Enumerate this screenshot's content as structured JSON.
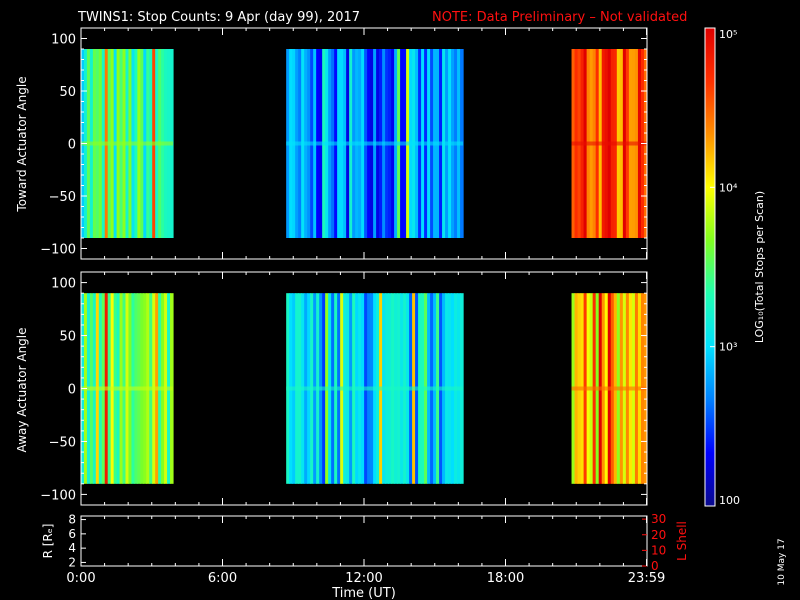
{
  "header": {
    "title": "TWINS1: Stop Counts:  9 Apr (day  99), 2017",
    "note": "NOTE: Data Preliminary – Not validated"
  },
  "side_date": "10 May 17",
  "colors": {
    "background": "#000000",
    "axes": "#ffffff",
    "note_red": "#ff1010",
    "lshell_red": "#ff1010"
  },
  "colorbar": {
    "label": "LOG₁₀(Total Stops per Scan)",
    "tick_labels": [
      "100",
      "10³",
      "10⁴",
      "10⁵"
    ],
    "tick_values": [
      100,
      1000,
      10000,
      100000
    ],
    "range": [
      100,
      100000
    ],
    "scale": "log",
    "colormap": [
      "#0a0a8c",
      "#0000ff",
      "#0080ff",
      "#00e0ff",
      "#20ffb0",
      "#80ff20",
      "#ffff00",
      "#ff9000",
      "#ff3000",
      "#e00000"
    ]
  },
  "chart_data": [
    {
      "type": "heatmap",
      "ylabel": "Toward Actuator Angle",
      "ylim": [
        -110,
        110
      ],
      "yticks": [
        "100",
        "50",
        "0",
        "−50",
        "−100"
      ],
      "ytick_values": [
        100,
        50,
        0,
        -50,
        -100
      ],
      "x_range_hours": [
        0,
        24
      ],
      "data_y_range": [
        -90,
        90
      ],
      "blocks": [
        {
          "start_h": 0.0,
          "end_h": 3.9,
          "level": 0.45
        },
        {
          "start_h": 8.7,
          "end_h": 16.2,
          "level": 0.22
        },
        {
          "start_h": 20.8,
          "end_h": 24.0,
          "level": 0.85
        }
      ]
    },
    {
      "type": "heatmap",
      "ylabel": "Away Actuator Angle",
      "ylim": [
        -110,
        110
      ],
      "yticks": [
        "100",
        "50",
        "0",
        "−50",
        "−100"
      ],
      "ytick_values": [
        100,
        50,
        0,
        -50,
        -100
      ],
      "x_range_hours": [
        0,
        24
      ],
      "data_y_range": [
        -90,
        90
      ],
      "blocks": [
        {
          "start_h": 0.0,
          "end_h": 3.9,
          "level": 0.5
        },
        {
          "start_h": 8.7,
          "end_h": 16.2,
          "level": 0.3
        },
        {
          "start_h": 20.8,
          "end_h": 24.0,
          "level": 0.7
        }
      ]
    },
    {
      "type": "line",
      "ylabel_left": "R [Rₑ]",
      "ylabel_right": "L Shell",
      "yticks_left": [
        "8",
        "6",
        "4",
        "2"
      ],
      "ytick_values_left": [
        8,
        6,
        4,
        2
      ],
      "yticks_right": [
        "30",
        "20",
        "10",
        "0"
      ],
      "ytick_values_right": [
        30,
        20,
        10,
        0
      ],
      "ylim_left": [
        1.5,
        8.5
      ],
      "ylim_right": [
        0,
        32
      ],
      "series": []
    }
  ],
  "x_axis": {
    "label": "Time (UT)",
    "tick_labels": [
      "0:00",
      "6:00",
      "12:00",
      "18:00",
      "23:59"
    ],
    "tick_values_hours": [
      0,
      6,
      12,
      18,
      23.98
    ]
  }
}
